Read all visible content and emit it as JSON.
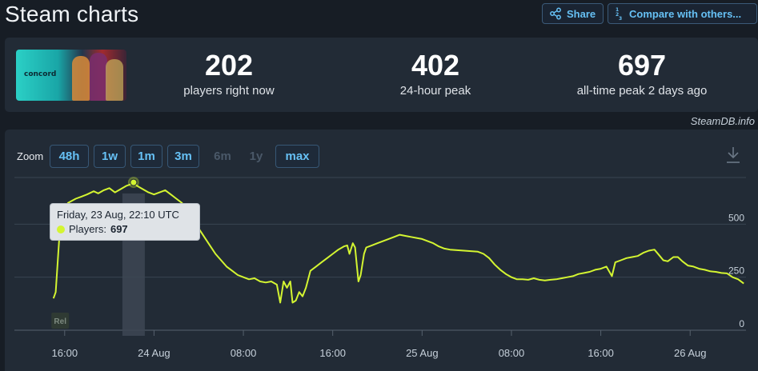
{
  "header": {
    "title": "Steam charts",
    "share_label": "Share",
    "compare_label": "Compare with others..."
  },
  "game": {
    "cover_logo": "concord"
  },
  "stats": [
    {
      "value": "202",
      "label": "players right now"
    },
    {
      "value": "402",
      "label": "24-hour peak"
    },
    {
      "value": "697",
      "label": "all-time peak 2 days ago"
    }
  ],
  "credit": "SteamDB.info",
  "zoom": {
    "label": "Zoom",
    "buttons": [
      {
        "label": "48h",
        "enabled": true
      },
      {
        "label": "1w",
        "enabled": true
      },
      {
        "label": "1m",
        "enabled": true
      },
      {
        "label": "3m",
        "enabled": true
      },
      {
        "label": "6m",
        "enabled": false
      },
      {
        "label": "1y",
        "enabled": false
      },
      {
        "label": "max",
        "enabled": true
      }
    ]
  },
  "tooltip": {
    "date": "Friday, 23 Aug, 22:10 UTC",
    "series_label": "Players:",
    "value": "697"
  },
  "marker_label": "Rel",
  "colors": {
    "line": "#d4f531",
    "accent": "#66c0f4",
    "panel": "#222b36",
    "background": "#171d25"
  },
  "chart_data": {
    "type": "line",
    "y_ticks": [
      "0",
      "250",
      "500"
    ],
    "ylim": [
      0,
      720
    ],
    "x_ticks": [
      "16:00",
      "24 Aug",
      "08:00",
      "16:00",
      "25 Aug",
      "08:00",
      "16:00",
      "26 Aug"
    ],
    "x_tick_hours": [
      16,
      24,
      32,
      40,
      48,
      56,
      64,
      72
    ],
    "xlim": [
      11.5,
      77
    ],
    "series": [
      {
        "points": [
          [
            15.0,
            150
          ],
          [
            15.2,
            180
          ],
          [
            15.5,
            420
          ],
          [
            15.8,
            560
          ],
          [
            16.3,
            600
          ],
          [
            17.0,
            620
          ],
          [
            17.5,
            630
          ],
          [
            18.0,
            640
          ],
          [
            18.6,
            655
          ],
          [
            19.0,
            645
          ],
          [
            19.5,
            660
          ],
          [
            20.0,
            670
          ],
          [
            20.5,
            650
          ],
          [
            21.0,
            665
          ],
          [
            21.5,
            680
          ],
          [
            22.0,
            690
          ],
          [
            22.17,
            697
          ],
          [
            22.5,
            680
          ],
          [
            23.0,
            665
          ],
          [
            23.5,
            650
          ],
          [
            24.0,
            640
          ],
          [
            24.5,
            650
          ],
          [
            25.0,
            660
          ],
          [
            25.5,
            640
          ],
          [
            26.0,
            620
          ],
          [
            26.5,
            600
          ],
          [
            27.0,
            560
          ],
          [
            27.5,
            520
          ],
          [
            28.0,
            480
          ],
          [
            28.5,
            440
          ],
          [
            29.0,
            400
          ],
          [
            29.5,
            360
          ],
          [
            30.0,
            330
          ],
          [
            30.5,
            300
          ],
          [
            31.0,
            280
          ],
          [
            31.5,
            260
          ],
          [
            32.0,
            250
          ],
          [
            32.5,
            240
          ],
          [
            33.0,
            245
          ],
          [
            33.5,
            230
          ],
          [
            34.0,
            225
          ],
          [
            34.5,
            230
          ],
          [
            35.0,
            215
          ],
          [
            35.3,
            130
          ],
          [
            35.6,
            230
          ],
          [
            35.9,
            200
          ],
          [
            36.2,
            230
          ],
          [
            36.4,
            130
          ],
          [
            36.7,
            140
          ],
          [
            37.0,
            180
          ],
          [
            37.3,
            160
          ],
          [
            37.6,
            200
          ],
          [
            38.0,
            280
          ],
          [
            38.5,
            300
          ],
          [
            39.0,
            320
          ],
          [
            39.5,
            340
          ],
          [
            40.0,
            360
          ],
          [
            40.5,
            380
          ],
          [
            41.0,
            395
          ],
          [
            41.3,
            400
          ],
          [
            41.5,
            360
          ],
          [
            41.8,
            410
          ],
          [
            42.0,
            390
          ],
          [
            42.3,
            230
          ],
          [
            42.5,
            260
          ],
          [
            42.8,
            360
          ],
          [
            43.0,
            390
          ],
          [
            43.5,
            400
          ],
          [
            44.0,
            410
          ],
          [
            44.5,
            420
          ],
          [
            45.0,
            430
          ],
          [
            45.5,
            440
          ],
          [
            46.0,
            450
          ],
          [
            46.5,
            445
          ],
          [
            47.0,
            440
          ],
          [
            47.5,
            435
          ],
          [
            48.0,
            430
          ],
          [
            48.5,
            420
          ],
          [
            49.0,
            410
          ],
          [
            49.5,
            395
          ],
          [
            50.0,
            385
          ],
          [
            50.5,
            380
          ],
          [
            51.0,
            378
          ],
          [
            51.5,
            376
          ],
          [
            52.0,
            374
          ],
          [
            52.5,
            372
          ],
          [
            53.0,
            370
          ],
          [
            53.5,
            360
          ],
          [
            54.0,
            340
          ],
          [
            54.5,
            310
          ],
          [
            55.0,
            285
          ],
          [
            55.5,
            265
          ],
          [
            56.0,
            250
          ],
          [
            56.5,
            240
          ],
          [
            57.0,
            240
          ],
          [
            57.5,
            238
          ],
          [
            58.0,
            245
          ],
          [
            58.5,
            238
          ],
          [
            59.0,
            235
          ],
          [
            59.5,
            238
          ],
          [
            60.0,
            240
          ],
          [
            60.5,
            245
          ],
          [
            61.0,
            250
          ],
          [
            61.5,
            255
          ],
          [
            62.0,
            265
          ],
          [
            62.5,
            270
          ],
          [
            63.0,
            275
          ],
          [
            63.5,
            285
          ],
          [
            64.0,
            290
          ],
          [
            64.5,
            300
          ],
          [
            65.0,
            255
          ],
          [
            65.3,
            320
          ],
          [
            65.8,
            330
          ],
          [
            66.3,
            340
          ],
          [
            66.8,
            345
          ],
          [
            67.3,
            350
          ],
          [
            67.8,
            365
          ],
          [
            68.3,
            375
          ],
          [
            68.8,
            380
          ],
          [
            69.2,
            355
          ],
          [
            69.6,
            330
          ],
          [
            70.0,
            325
          ],
          [
            70.5,
            345
          ],
          [
            70.9,
            345
          ],
          [
            71.3,
            325
          ],
          [
            71.8,
            305
          ],
          [
            72.3,
            300
          ],
          [
            72.8,
            290
          ],
          [
            73.3,
            285
          ],
          [
            73.8,
            278
          ],
          [
            74.3,
            275
          ],
          [
            74.8,
            270
          ],
          [
            75.3,
            268
          ],
          [
            75.8,
            250
          ],
          [
            76.3,
            240
          ],
          [
            76.8,
            220
          ]
        ]
      }
    ],
    "highlight_x": 22.17,
    "release_x": 15.6,
    "grid": true
  }
}
